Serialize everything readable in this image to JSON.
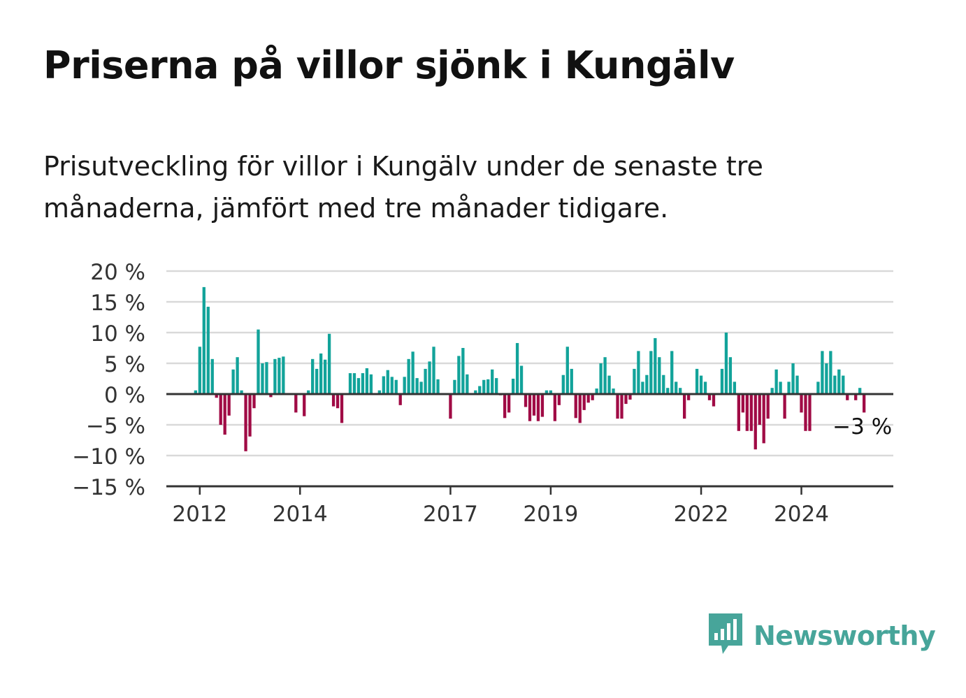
{
  "title": "Priserna på villor sjönk i Kungälv",
  "subtitle": "Prisutveckling för villor i Kungälv under de senaste tre månaderna, jämfört med tre månader tidigare.",
  "brand": {
    "name": "Newsworthy",
    "icon": "bar-chart-speech-bubble-icon"
  },
  "colors": {
    "positive": "#12a39a",
    "negative": "#a00b45",
    "grid": "#d9d9d9",
    "axis": "#333333",
    "brand": "#47a59a"
  },
  "chart_data": {
    "type": "bar",
    "ylim": [
      -15,
      20
    ],
    "xlim": [
      "2011-05",
      "2025-11"
    ],
    "y_ticks": [
      20,
      15,
      10,
      5,
      0,
      -5,
      -10,
      -15
    ],
    "y_tick_labels": [
      "20 %",
      "15 %",
      "10 %",
      "5 %",
      "0 %",
      "−5 %",
      "−10 %",
      "−15 %"
    ],
    "x_ticks": [
      "2012-01",
      "2014-01",
      "2017-01",
      "2019-01",
      "2022-01",
      "2024-01"
    ],
    "x_tick_labels": [
      "2012",
      "2014",
      "2017",
      "2019",
      "2022",
      "2024"
    ],
    "grid": true,
    "annotation": {
      "text": "−3 %",
      "x": "2025-04",
      "y": -3
    },
    "x": [
      "2011-12",
      "2012-01",
      "2012-02",
      "2012-03",
      "2012-04",
      "2012-05",
      "2012-06",
      "2012-07",
      "2012-08",
      "2012-09",
      "2012-10",
      "2012-11",
      "2012-12",
      "2013-01",
      "2013-02",
      "2013-03",
      "2013-04",
      "2013-05",
      "2013-06",
      "2013-07",
      "2013-08",
      "2013-09",
      "2013-10",
      "2013-11",
      "2013-12",
      "2014-01",
      "2014-02",
      "2014-03",
      "2014-04",
      "2014-05",
      "2014-06",
      "2014-07",
      "2014-08",
      "2014-09",
      "2014-10",
      "2014-11",
      "2014-12",
      "2015-01",
      "2015-02",
      "2015-03",
      "2015-04",
      "2015-05",
      "2015-06",
      "2015-07",
      "2015-08",
      "2015-09",
      "2015-10",
      "2015-11",
      "2015-12",
      "2016-01",
      "2016-02",
      "2016-03",
      "2016-04",
      "2016-05",
      "2016-06",
      "2016-07",
      "2016-08",
      "2016-09",
      "2016-10",
      "2016-11",
      "2016-12",
      "2017-01",
      "2017-02",
      "2017-03",
      "2017-04",
      "2017-05",
      "2017-06",
      "2017-07",
      "2017-08",
      "2017-09",
      "2017-10",
      "2017-11",
      "2017-12",
      "2018-01",
      "2018-02",
      "2018-03",
      "2018-04",
      "2018-05",
      "2018-06",
      "2018-07",
      "2018-08",
      "2018-09",
      "2018-10",
      "2018-11",
      "2018-12",
      "2019-01",
      "2019-02",
      "2019-03",
      "2019-04",
      "2019-05",
      "2019-06",
      "2019-07",
      "2019-08",
      "2019-09",
      "2019-10",
      "2019-11",
      "2019-12",
      "2020-01",
      "2020-02",
      "2020-03",
      "2020-04",
      "2020-05",
      "2020-06",
      "2020-07",
      "2020-08",
      "2020-09",
      "2020-10",
      "2020-11",
      "2020-12",
      "2021-01",
      "2021-02",
      "2021-03",
      "2021-04",
      "2021-05",
      "2021-06",
      "2021-07",
      "2021-08",
      "2021-09",
      "2021-10",
      "2021-11",
      "2021-12",
      "2022-01",
      "2022-02",
      "2022-03",
      "2022-04",
      "2022-05",
      "2022-06",
      "2022-07",
      "2022-08",
      "2022-09",
      "2022-10",
      "2022-11",
      "2022-12",
      "2023-01",
      "2023-02",
      "2023-03",
      "2023-04",
      "2023-05",
      "2023-06",
      "2023-07",
      "2023-08",
      "2023-09",
      "2023-10",
      "2023-11",
      "2023-12",
      "2024-01",
      "2024-02",
      "2024-03",
      "2024-04",
      "2024-05",
      "2024-06",
      "2024-07",
      "2024-08",
      "2024-09",
      "2024-10",
      "2024-11",
      "2024-12",
      "2025-01",
      "2025-02",
      "2025-03",
      "2025-04"
    ],
    "values": [
      0.6,
      7.7,
      17.4,
      14.2,
      5.7,
      -0.6,
      -5.0,
      -6.6,
      -3.5,
      4.0,
      6.0,
      0.6,
      -9.3,
      -6.9,
      -2.3,
      10.5,
      5.0,
      5.2,
      -0.5,
      5.7,
      5.9,
      6.1,
      0.0,
      0.0,
      -3.0,
      0.0,
      -3.6,
      0.6,
      5.7,
      4.1,
      6.6,
      5.6,
      9.8,
      -2.0,
      -2.3,
      -4.7,
      0.0,
      3.4,
      3.4,
      2.6,
      3.4,
      4.2,
      3.2,
      0.0,
      0.6,
      2.9,
      3.9,
      2.8,
      2.3,
      -1.8,
      2.8,
      5.7,
      6.9,
      2.6,
      2.0,
      4.1,
      5.3,
      7.7,
      2.4,
      0.0,
      0.0,
      -4.0,
      2.3,
      6.2,
      7.5,
      3.2,
      0.0,
      0.6,
      1.3,
      2.3,
      2.4,
      4.0,
      2.6,
      -0.2,
      -3.9,
      -3.0,
      2.5,
      8.3,
      4.6,
      -2.1,
      -4.4,
      -3.5,
      -4.4,
      -3.7,
      0.6,
      0.6,
      -4.4,
      -1.8,
      3.1,
      7.7,
      4.1,
      -3.9,
      -4.7,
      -2.6,
      -1.4,
      -1.0,
      0.9,
      5.0,
      6.0,
      3.0,
      0.9,
      -4.0,
      -4.0,
      -1.6,
      -0.9,
      4.1,
      7.0,
      2.0,
      3.1,
      7.0,
      9.1,
      6.0,
      3.1,
      1.0,
      7.0,
      2.0,
      1.0,
      -4.0,
      -1.0,
      0.0,
      4.1,
      3.0,
      2.0,
      -1.0,
      -2.0,
      0.0,
      4.1,
      10.0,
      6.0,
      2.0,
      -6.0,
      -3.0,
      -6.0,
      -6.0,
      -9.0,
      -5.0,
      -8.0,
      -4.0,
      1.0,
      4.0,
      2.0,
      -4.0,
      2.0,
      5.0,
      3.0,
      -3.0,
      -6.0,
      -6.0,
      0.0,
      2.0,
      7.0,
      5.0,
      7.0,
      3.0,
      4.0,
      3.0,
      -1.0,
      0.0,
      -1.0,
      1.0,
      -3.0
    ]
  }
}
